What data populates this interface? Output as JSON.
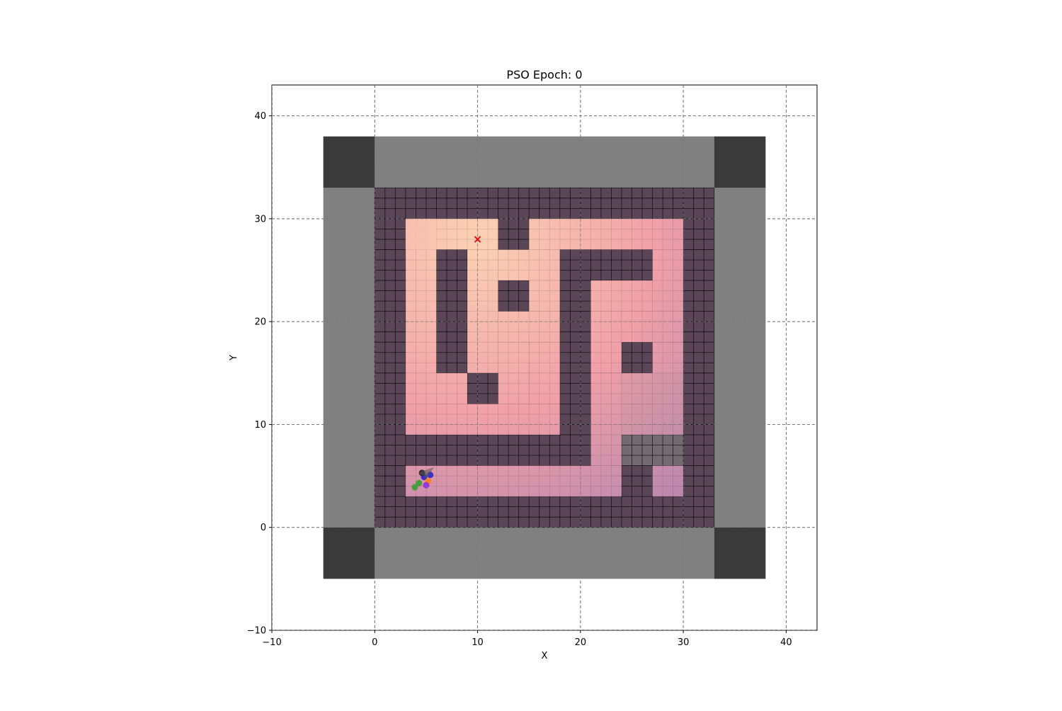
{
  "chart_data": {
    "type": "scatter",
    "title": "PSO Epoch: 0",
    "xlabel": "X",
    "ylabel": "Y",
    "xlim": [
      -10,
      43
    ],
    "ylim": [
      -10,
      43
    ],
    "xticks": [
      -10,
      0,
      10,
      20,
      30,
      40
    ],
    "yticks": [
      -10,
      0,
      10,
      20,
      30,
      40
    ],
    "grid": true,
    "colors": {
      "wall": "#5a4656",
      "boundary": "#808080",
      "corner": "#3a3a3a",
      "heat_near": "#fcd2b4",
      "heat_mid": "#f0a0a8",
      "heat_far": "#a07cb0",
      "target": "#dd1111"
    },
    "boundary_regions": [
      {
        "name": "top",
        "x": [
          0,
          33
        ],
        "y": [
          33,
          38
        ]
      },
      {
        "name": "bottom",
        "x": [
          0,
          33
        ],
        "y": [
          -5,
          0
        ]
      },
      {
        "name": "left",
        "x": [
          -5,
          0
        ],
        "y": [
          0,
          33
        ]
      },
      {
        "name": "right",
        "x": [
          33,
          38
        ],
        "y": [
          0,
          33
        ]
      }
    ],
    "corner_regions": [
      {
        "name": "top-left",
        "x": [
          -5,
          0
        ],
        "y": [
          33,
          38
        ]
      },
      {
        "name": "top-right",
        "x": [
          33,
          38
        ],
        "y": [
          33,
          38
        ]
      },
      {
        "name": "bottom-left",
        "x": [
          -5,
          0
        ],
        "y": [
          -5,
          0
        ]
      },
      {
        "name": "bottom-right",
        "x": [
          33,
          38
        ],
        "y": [
          -5,
          0
        ]
      }
    ],
    "maze_bounds": {
      "x": [
        0,
        33
      ],
      "y": [
        0,
        33
      ]
    },
    "free_corridors": [
      {
        "x": [
          3,
          12
        ],
        "y": [
          27,
          30
        ]
      },
      {
        "x": [
          3,
          6
        ],
        "y": [
          9,
          30
        ]
      },
      {
        "x": [
          15,
          30
        ],
        "y": [
          27,
          30
        ]
      },
      {
        "x": [
          27,
          30
        ],
        "y": [
          21,
          27
        ]
      },
      {
        "x": [
          12,
          18
        ],
        "y": [
          24,
          27
        ]
      },
      {
        "x": [
          9,
          12
        ],
        "y": [
          15,
          27
        ]
      },
      {
        "x": [
          15,
          18
        ],
        "y": [
          21,
          24
        ]
      },
      {
        "x": [
          21,
          27
        ],
        "y": [
          21,
          24
        ]
      },
      {
        "x": [
          21,
          24
        ],
        "y": [
          15,
          21
        ]
      },
      {
        "x": [
          24,
          30
        ],
        "y": [
          18,
          21
        ]
      },
      {
        "x": [
          27,
          30
        ],
        "y": [
          9,
          18
        ]
      },
      {
        "x": [
          24,
          27
        ],
        "y": [
          9,
          12
        ]
      },
      {
        "x": [
          21,
          24
        ],
        "y": [
          6,
          15
        ]
      },
      {
        "x": [
          6,
          9
        ],
        "y": [
          12,
          15
        ]
      },
      {
        "x": [
          6,
          18
        ],
        "y": [
          9,
          12
        ]
      },
      {
        "x": [
          12,
          15
        ],
        "y": [
          12,
          18
        ]
      },
      {
        "x": [
          15,
          18
        ],
        "y": [
          12,
          18
        ]
      },
      {
        "x": [
          12,
          18
        ],
        "y": [
          18,
          21
        ]
      },
      {
        "x": [
          3,
          24
        ],
        "y": [
          3,
          6
        ]
      },
      {
        "x": [
          27,
          30
        ],
        "y": [
          3,
          6
        ]
      },
      {
        "x": [
          24,
          27
        ],
        "y": [
          12,
          15
        ]
      }
    ],
    "shadow_regions": [
      {
        "x": [
          24,
          30
        ],
        "y": [
          6,
          15
        ]
      }
    ],
    "target": {
      "x": 10,
      "y": 28
    },
    "particles": [
      {
        "x": 4.8,
        "y": 4.9,
        "color": "#1f1fcc"
      },
      {
        "x": 4.3,
        "y": 4.3,
        "color": "#2ca02c"
      },
      {
        "x": 5.2,
        "y": 4.5,
        "color": "#ff7f0e"
      },
      {
        "x": 4.6,
        "y": 5.3,
        "color": "#1a1a1a"
      },
      {
        "x": 5.0,
        "y": 4.1,
        "color": "#8a2be2"
      },
      {
        "x": 3.9,
        "y": 3.9,
        "color": "#2ca02c"
      },
      {
        "x": 5.4,
        "y": 5.1,
        "color": "#1f1fcc"
      }
    ]
  }
}
